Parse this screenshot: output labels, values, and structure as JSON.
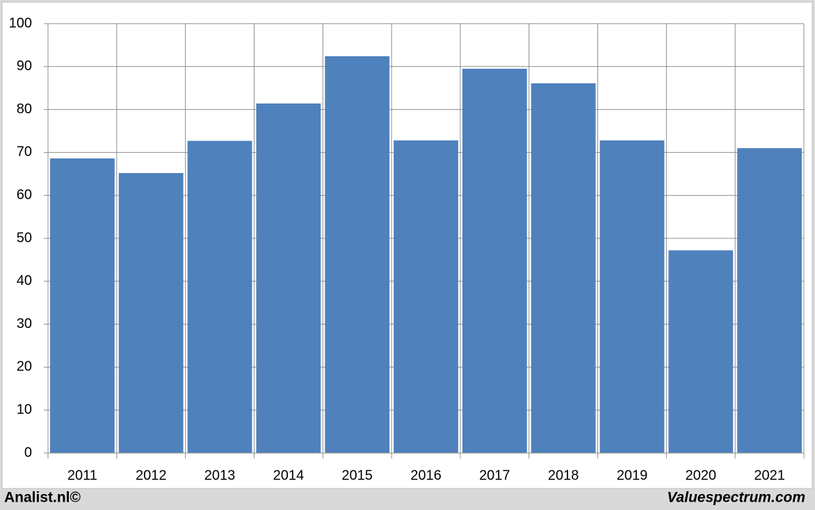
{
  "chart_data": {
    "type": "bar",
    "categories": [
      "2011",
      "2012",
      "2013",
      "2014",
      "2015",
      "2016",
      "2017",
      "2018",
      "2019",
      "2020",
      "2021"
    ],
    "values": [
      68.6,
      65.2,
      72.7,
      81.4,
      92.4,
      72.8,
      89.5,
      86.1,
      72.8,
      47.2,
      71.0
    ],
    "color": "#4f81bd",
    "ylim": [
      0,
      100
    ],
    "yticks": [
      0,
      10,
      20,
      30,
      40,
      50,
      60,
      70,
      80,
      90,
      100
    ],
    "grid": true,
    "footer_left": "Analist.nl©",
    "footer_right": "Valuespectrum.com"
  }
}
